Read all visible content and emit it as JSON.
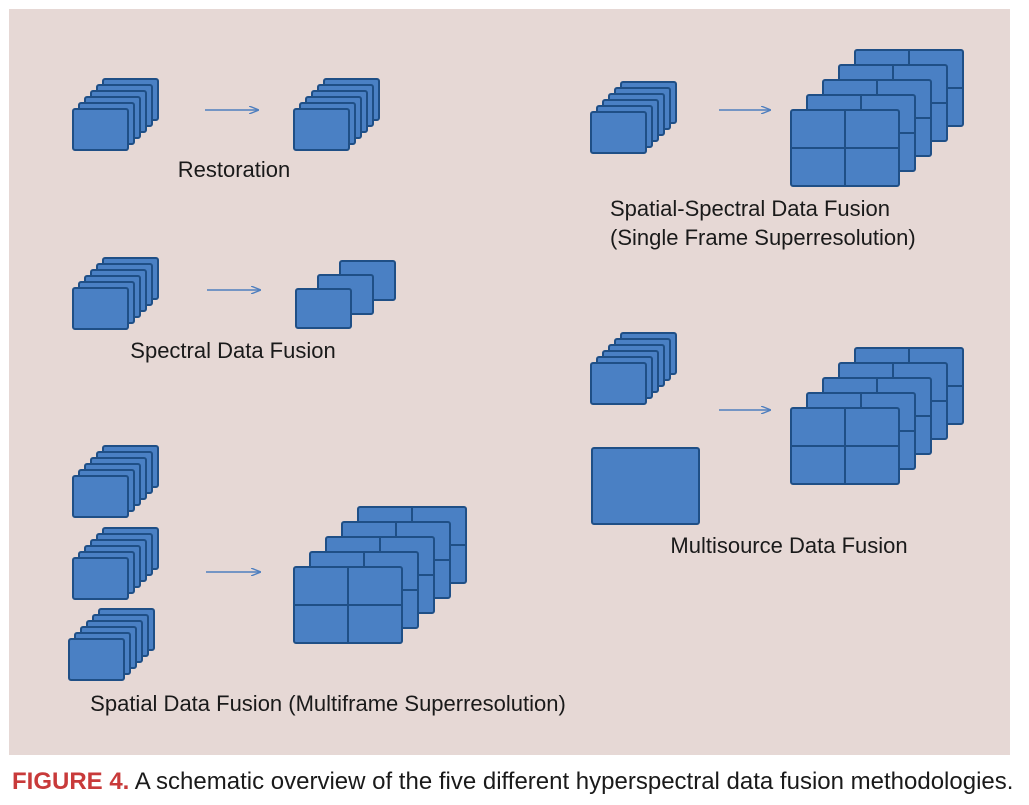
{
  "colors": {
    "panel": "#e6d8d5",
    "frame_fill": "#4a80c4",
    "frame_stroke": "#1f4f86",
    "arrow": "#4f7fbf",
    "caption_accent": "#c83a3a",
    "text": "#1a1a1a"
  },
  "schemes": {
    "restoration": {
      "label": "Restoration"
    },
    "spectral": {
      "label": "Spectral Data Fusion"
    },
    "spatial": {
      "label": "Spatial Data Fusion (Multiframe Superresolution)"
    },
    "spatial_spectral": {
      "label_line1": "Spatial-Spectral Data Fusion",
      "label_line2": "(Single Frame Superresolution)"
    },
    "multisource": {
      "label": "Multisource Data Fusion"
    }
  },
  "caption": {
    "number": "FIGURE 4.",
    "text": " A schematic overview of the five different hyperspectral data fusion methodologies."
  }
}
